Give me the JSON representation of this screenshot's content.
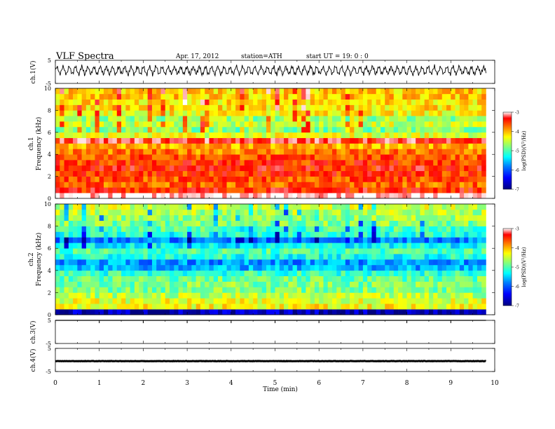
{
  "header": {
    "title": "VLF  Spectra",
    "date": "Apr. 17, 2012",
    "station": "station=ATH",
    "start": "start  UT =   19: 0  : 0"
  },
  "colors": {
    "colormap": [
      "#00007f",
      "#0000ff",
      "#0080ff",
      "#00ffff",
      "#80ff80",
      "#ffff00",
      "#ff8000",
      "#ff0000",
      "#ffffff"
    ],
    "trace": "#000000"
  },
  "chart_data": [
    {
      "type": "line",
      "title": "",
      "ylabel": "ch.1(V)",
      "ylim": [
        -5,
        5
      ],
      "yticks": [
        {
          "v": 5,
          "label": "5"
        },
        {
          "v": -5,
          "label": "-5"
        }
      ],
      "xlim": [
        0,
        10
      ],
      "signal": {
        "kind": "oscillating",
        "amplitude_V": 2.6,
        "mean_V": 0.6,
        "end_min": 9.8
      }
    },
    {
      "type": "heatmap",
      "ylabel": "ch.1\nFrequency (kHz)",
      "ylim": [
        0,
        10
      ],
      "yticks": [
        0,
        2,
        4,
        6,
        8,
        10
      ],
      "xlim": [
        0,
        10
      ],
      "time_end_min": 9.8,
      "colorbar": {
        "label": "log(PSD)(V²/Hz)",
        "range": [
          -7,
          -3
        ],
        "ticks": [
          -3,
          -4,
          -5,
          -6,
          -7
        ]
      },
      "freq_bands_kHz": [
        0,
        0.5,
        1.0,
        1.5,
        2.0,
        2.5,
        3.0,
        3.5,
        4.0,
        4.5,
        5.0,
        5.5,
        6.0,
        6.5,
        7.0,
        7.5,
        8.0,
        8.5,
        9.0,
        9.5,
        10.0
      ],
      "band_logPSD": [
        -3.0,
        -3.6,
        -3.9,
        -3.8,
        -3.7,
        -3.6,
        -3.7,
        -3.8,
        -4.0,
        -4.2,
        -3.4,
        -4.6,
        -5.0,
        -4.7,
        -4.9,
        -4.5,
        -4.4,
        -4.4,
        -4.3,
        -4.3
      ]
    },
    {
      "type": "heatmap",
      "ylabel": "ch.2\nFrequency (kHz)",
      "ylim": [
        0,
        10
      ],
      "yticks": [
        0,
        2,
        4,
        6,
        8,
        10
      ],
      "xlim": [
        0,
        10
      ],
      "time_end_min": 9.8,
      "colorbar": {
        "label": "log(PSD)(V²/Hz)",
        "range": [
          -7,
          -3
        ],
        "ticks": [
          -3,
          -4,
          -5,
          -6,
          -7
        ]
      },
      "freq_bands_kHz": [
        0,
        0.5,
        1.0,
        1.5,
        2.0,
        2.5,
        3.0,
        3.5,
        4.0,
        4.5,
        5.0,
        5.5,
        6.0,
        6.5,
        7.0,
        7.5,
        8.0,
        8.5,
        9.0,
        9.5,
        10.0
      ],
      "band_logPSD": [
        -6.8,
        -4.5,
        -4.6,
        -4.8,
        -5.0,
        -5.0,
        -5.1,
        -5.3,
        -5.8,
        -5.9,
        -5.4,
        -5.2,
        -5.5,
        -6.0,
        -5.4,
        -5.2,
        -5.0,
        -4.9,
        -4.8,
        -4.7
      ]
    },
    {
      "type": "line",
      "ylabel": "ch.3(V)",
      "ylim": [
        -5,
        5
      ],
      "yticks": [
        {
          "v": 5,
          "label": "5"
        },
        {
          "v": -5,
          "label": "-5"
        }
      ],
      "xlim": [
        0,
        10
      ],
      "signal": {
        "kind": "flat",
        "mean_V": 5.0,
        "amplitude_V": 0.0,
        "end_min": 9.8
      }
    },
    {
      "type": "line",
      "ylabel": "ch.4(V)",
      "ylim": [
        -5,
        5
      ],
      "yticks": [
        {
          "v": 5,
          "label": "5"
        },
        {
          "v": -5,
          "label": "-5"
        }
      ],
      "xlim": [
        0,
        10
      ],
      "signal": {
        "kind": "flat",
        "mean_V": -0.5,
        "amplitude_V": 0.15,
        "end_min": 9.8
      },
      "xlabel": "Time  (min)",
      "xticks": [
        0,
        1,
        2,
        3,
        4,
        5,
        6,
        7,
        8,
        9,
        10
      ]
    }
  ]
}
